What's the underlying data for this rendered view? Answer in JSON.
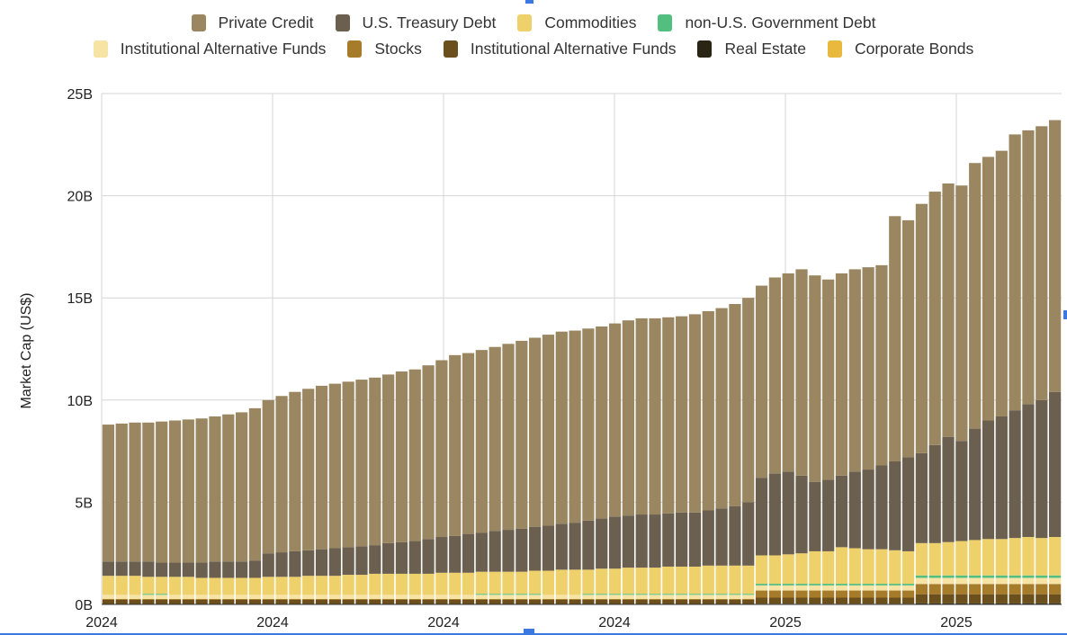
{
  "chart_data": {
    "type": "bar",
    "stacked": true,
    "title": "",
    "ylabel": "Market Cap (US$)",
    "xlabel": "",
    "ylim": [
      0,
      25
    ],
    "y_unit": "B",
    "y_ticks": [
      "0B",
      "5B",
      "10B",
      "15B",
      "20B",
      "25B"
    ],
    "x_ticks": [
      "2024",
      "2024",
      "2024",
      "2024",
      "2025",
      "2025"
    ],
    "grid": true,
    "legend_position": "top",
    "legend_rows": [
      [
        8,
        7,
        6,
        4
      ],
      [
        3,
        2,
        1,
        0,
        5
      ]
    ],
    "series": [
      {
        "name": "Real Estate",
        "color": "#2a2414",
        "values": [
          0.02,
          0.02,
          0.02,
          0.02,
          0.02,
          0.02,
          0.02,
          0.02,
          0.02,
          0.02,
          0.02,
          0.02,
          0.02,
          0.02,
          0.02,
          0.02,
          0.02,
          0.02,
          0.02,
          0.02,
          0.02,
          0.02,
          0.02,
          0.02,
          0.02,
          0.02,
          0.02,
          0.02,
          0.02,
          0.02,
          0.02,
          0.02,
          0.02,
          0.02,
          0.02,
          0.02,
          0.02,
          0.02,
          0.02,
          0.02,
          0.02,
          0.02,
          0.02,
          0.02,
          0.02,
          0.02,
          0.02,
          0.02,
          0.02,
          0.03,
          0.03,
          0.03,
          0.03,
          0.03,
          0.03,
          0.03,
          0.03,
          0.03,
          0.03,
          0.03,
          0.03,
          0.05,
          0.05,
          0.05,
          0.05,
          0.05,
          0.05,
          0.05,
          0.05,
          0.05,
          0.05,
          0.05
        ]
      },
      {
        "name": "Institutional Alternative Funds",
        "color": "#6b4f1d",
        "values": [
          0.2,
          0.2,
          0.2,
          0.2,
          0.2,
          0.2,
          0.2,
          0.2,
          0.2,
          0.2,
          0.2,
          0.2,
          0.2,
          0.2,
          0.2,
          0.2,
          0.2,
          0.2,
          0.2,
          0.2,
          0.2,
          0.2,
          0.2,
          0.2,
          0.2,
          0.2,
          0.2,
          0.2,
          0.2,
          0.2,
          0.2,
          0.2,
          0.2,
          0.2,
          0.2,
          0.2,
          0.2,
          0.2,
          0.2,
          0.2,
          0.2,
          0.2,
          0.2,
          0.2,
          0.2,
          0.2,
          0.2,
          0.2,
          0.2,
          0.3,
          0.3,
          0.3,
          0.3,
          0.3,
          0.3,
          0.3,
          0.3,
          0.3,
          0.3,
          0.3,
          0.3,
          0.45,
          0.45,
          0.45,
          0.45,
          0.45,
          0.45,
          0.45,
          0.45,
          0.45,
          0.45,
          0.45
        ]
      },
      {
        "name": "Stocks",
        "color": "#a67c2a",
        "values": [
          0.05,
          0.05,
          0.05,
          0.05,
          0.05,
          0.05,
          0.05,
          0.05,
          0.05,
          0.05,
          0.05,
          0.05,
          0.05,
          0.05,
          0.05,
          0.05,
          0.05,
          0.05,
          0.05,
          0.05,
          0.05,
          0.05,
          0.05,
          0.05,
          0.05,
          0.05,
          0.05,
          0.05,
          0.05,
          0.05,
          0.05,
          0.05,
          0.05,
          0.05,
          0.05,
          0.05,
          0.05,
          0.05,
          0.05,
          0.05,
          0.05,
          0.05,
          0.05,
          0.05,
          0.05,
          0.05,
          0.05,
          0.05,
          0.05,
          0.35,
          0.35,
          0.35,
          0.35,
          0.35,
          0.35,
          0.35,
          0.35,
          0.35,
          0.35,
          0.35,
          0.35,
          0.5,
          0.5,
          0.5,
          0.5,
          0.5,
          0.5,
          0.5,
          0.5,
          0.5,
          0.5,
          0.5
        ]
      },
      {
        "name": "Institutional Alternative Funds",
        "color": "#f7e4a4",
        "values": [
          0.2,
          0.2,
          0.2,
          0.2,
          0.2,
          0.2,
          0.2,
          0.2,
          0.2,
          0.2,
          0.2,
          0.2,
          0.2,
          0.2,
          0.2,
          0.2,
          0.2,
          0.2,
          0.2,
          0.2,
          0.2,
          0.2,
          0.2,
          0.2,
          0.2,
          0.2,
          0.2,
          0.2,
          0.2,
          0.2,
          0.2,
          0.2,
          0.2,
          0.2,
          0.2,
          0.2,
          0.2,
          0.2,
          0.2,
          0.2,
          0.2,
          0.2,
          0.2,
          0.2,
          0.2,
          0.2,
          0.2,
          0.2,
          0.2,
          0.25,
          0.25,
          0.25,
          0.25,
          0.25,
          0.25,
          0.25,
          0.25,
          0.25,
          0.25,
          0.25,
          0.25,
          0.3,
          0.3,
          0.3,
          0.3,
          0.3,
          0.3,
          0.3,
          0.3,
          0.3,
          0.3,
          0.3
        ]
      },
      {
        "name": "non-U.S. Government Debt",
        "color": "#52bf80",
        "values": [
          0,
          0,
          0,
          0.05,
          0.05,
          0,
          0,
          0,
          0,
          0,
          0,
          0,
          0,
          0,
          0,
          0,
          0,
          0,
          0,
          0,
          0,
          0,
          0,
          0,
          0,
          0,
          0,
          0,
          0.05,
          0.05,
          0.05,
          0.05,
          0.05,
          0,
          0,
          0,
          0.05,
          0.05,
          0.05,
          0.05,
          0.05,
          0.05,
          0.05,
          0.05,
          0.05,
          0.05,
          0.05,
          0.05,
          0.05,
          0.08,
          0.08,
          0.08,
          0.08,
          0.08,
          0.08,
          0.08,
          0.08,
          0.08,
          0.08,
          0.08,
          0.08,
          0.12,
          0.12,
          0.12,
          0.12,
          0.12,
          0.12,
          0.12,
          0.12,
          0.12,
          0.12,
          0.12
        ]
      },
      {
        "name": "Corporate Bonds",
        "color": "#e8b93c",
        "values": [
          0,
          0,
          0,
          0,
          0,
          0,
          0,
          0,
          0,
          0,
          0,
          0,
          0,
          0,
          0,
          0,
          0,
          0,
          0,
          0,
          0,
          0,
          0,
          0,
          0,
          0,
          0,
          0,
          0,
          0,
          0,
          0,
          0,
          0,
          0,
          0,
          0,
          0,
          0,
          0,
          0,
          0,
          0,
          0,
          0,
          0,
          0,
          0,
          0,
          0,
          0,
          0,
          0,
          0,
          0,
          0,
          0,
          0,
          0,
          0,
          0,
          0,
          0,
          0,
          0,
          0,
          0,
          0,
          0,
          0,
          0,
          0
        ]
      },
      {
        "name": "Commodities",
        "color": "#efd16b",
        "values": [
          0.93,
          0.93,
          0.93,
          0.83,
          0.83,
          0.88,
          0.88,
          0.83,
          0.83,
          0.83,
          0.83,
          0.83,
          0.88,
          0.88,
          0.88,
          0.93,
          0.93,
          0.93,
          0.98,
          0.98,
          1.03,
          1.03,
          1.03,
          1.03,
          1.03,
          1.08,
          1.08,
          1.08,
          1.08,
          1.08,
          1.08,
          1.08,
          1.13,
          1.18,
          1.23,
          1.23,
          1.18,
          1.23,
          1.23,
          1.28,
          1.28,
          1.28,
          1.33,
          1.33,
          1.33,
          1.38,
          1.38,
          1.38,
          1.38,
          1.39,
          1.39,
          1.44,
          1.49,
          1.59,
          1.59,
          1.79,
          1.74,
          1.69,
          1.69,
          1.64,
          1.59,
          1.58,
          1.58,
          1.63,
          1.68,
          1.73,
          1.78,
          1.78,
          1.83,
          1.88,
          1.83,
          1.88
        ]
      },
      {
        "name": "U.S. Treasury Debt",
        "color": "#6b604f",
        "values": [
          0.7,
          0.7,
          0.7,
          0.75,
          0.7,
          0.7,
          0.7,
          0.75,
          0.8,
          0.8,
          0.8,
          0.85,
          1.15,
          1.2,
          1.25,
          1.25,
          1.3,
          1.35,
          1.35,
          1.4,
          1.4,
          1.5,
          1.55,
          1.6,
          1.7,
          1.75,
          1.8,
          1.9,
          1.9,
          2.0,
          2.05,
          2.1,
          2.15,
          2.2,
          2.25,
          2.3,
          2.4,
          2.45,
          2.55,
          2.55,
          2.6,
          2.6,
          2.6,
          2.65,
          2.65,
          2.7,
          2.8,
          2.9,
          3.1,
          3.8,
          4.0,
          4.05,
          3.8,
          3.4,
          3.5,
          3.5,
          3.75,
          3.9,
          4.1,
          4.35,
          4.6,
          4.4,
          4.8,
          5.15,
          4.9,
          5.45,
          5.8,
          6.0,
          6.25,
          6.5,
          6.75,
          7.1
        ]
      },
      {
        "name": "Private Credit",
        "color": "#9a8660",
        "values": [
          6.7,
          6.75,
          6.8,
          6.8,
          6.9,
          6.95,
          7.0,
          7.05,
          7.1,
          7.2,
          7.3,
          7.45,
          7.5,
          7.65,
          7.8,
          7.9,
          8.0,
          8.05,
          8.1,
          8.15,
          8.2,
          8.25,
          8.35,
          8.4,
          8.5,
          8.65,
          8.85,
          8.85,
          8.95,
          9.0,
          9.1,
          9.2,
          9.25,
          9.35,
          9.4,
          9.4,
          9.4,
          9.4,
          9.45,
          9.55,
          9.6,
          9.6,
          9.6,
          9.6,
          9.7,
          9.75,
          9.8,
          9.9,
          10.0,
          9.4,
          9.6,
          9.7,
          10.1,
          10.1,
          9.8,
          9.9,
          9.9,
          9.9,
          9.8,
          12.0,
          11.6,
          12.2,
          12.4,
          12.4,
          12.5,
          13.0,
          12.9,
          13.0,
          13.5,
          13.4,
          13.4,
          13.3
        ]
      }
    ]
  }
}
